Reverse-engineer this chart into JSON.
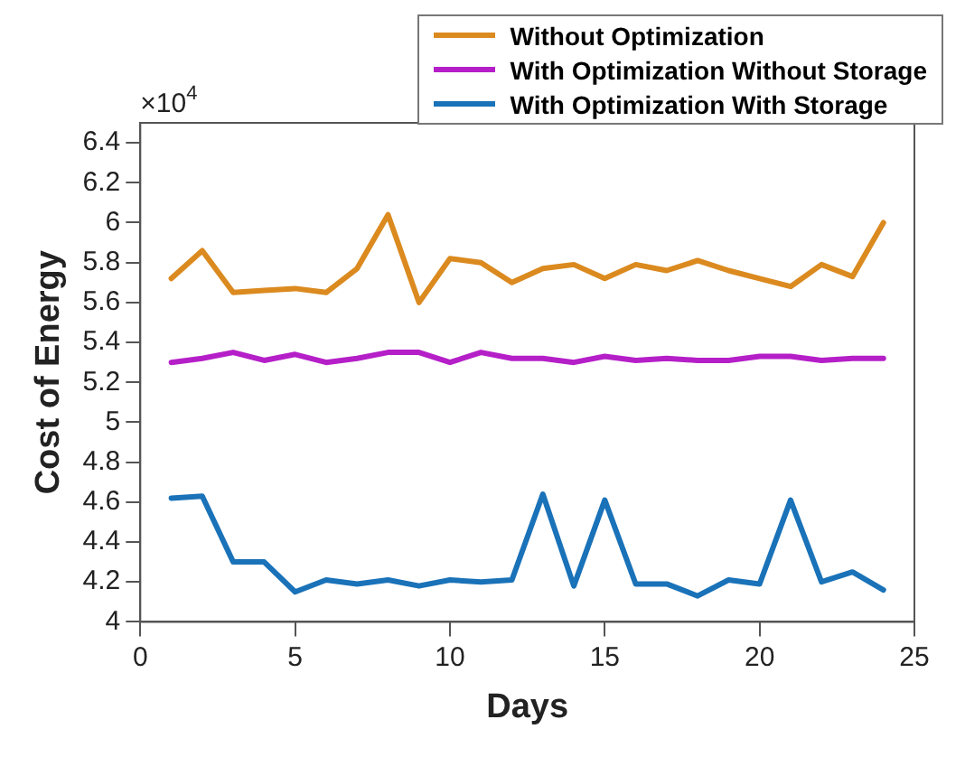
{
  "chart_data": {
    "type": "line",
    "xlabel": "Days",
    "ylabel": "Cost of Energy",
    "annotations": [
      "×10$^{4}$"
    ],
    "x": [
      1,
      2,
      3,
      4,
      5,
      6,
      7,
      8,
      9,
      10,
      11,
      12,
      13,
      14,
      15,
      16,
      17,
      18,
      19,
      20,
      21,
      22,
      23,
      24
    ],
    "xlim": [
      0,
      25
    ],
    "xticks": [
      0,
      5,
      10,
      15,
      20,
      25
    ],
    "ylim": [
      4,
      6.5
    ],
    "yticks": [
      4,
      4.2,
      4.4,
      4.6,
      4.8,
      5,
      5.2,
      5.4,
      5.6,
      5.8,
      6,
      6.2,
      6.4
    ],
    "grid": false,
    "legend": "top right",
    "marker": "none",
    "line_style": "solid",
    "series": [
      {
        "name": "Without Optimization",
        "color": "#db8a1f",
        "values": [
          5.72,
          5.86,
          5.65,
          5.66,
          5.67,
          5.65,
          5.77,
          6.04,
          5.6,
          5.82,
          5.8,
          5.7,
          5.77,
          5.79,
          5.72,
          5.79,
          5.76,
          5.81,
          5.76,
          5.72,
          5.68,
          5.79,
          5.73,
          6.0
        ]
      },
      {
        "name": "With Optimization Without Storage",
        "color": "#b51fc8",
        "values": [
          5.3,
          5.32,
          5.35,
          5.31,
          5.34,
          5.3,
          5.32,
          5.35,
          5.35,
          5.3,
          5.35,
          5.32,
          5.32,
          5.3,
          5.33,
          5.31,
          5.32,
          5.31,
          5.31,
          5.33,
          5.33,
          5.31,
          5.32,
          5.32
        ]
      },
      {
        "name": "With Optimization With Storage",
        "color": "#1a72b8",
        "values": [
          4.62,
          4.63,
          4.3,
          4.3,
          4.15,
          4.21,
          4.19,
          4.21,
          4.18,
          4.21,
          4.2,
          4.21,
          4.64,
          4.18,
          4.61,
          4.19,
          4.19,
          4.13,
          4.21,
          4.19,
          4.61,
          4.2,
          4.25,
          4.16
        ]
      }
    ]
  }
}
